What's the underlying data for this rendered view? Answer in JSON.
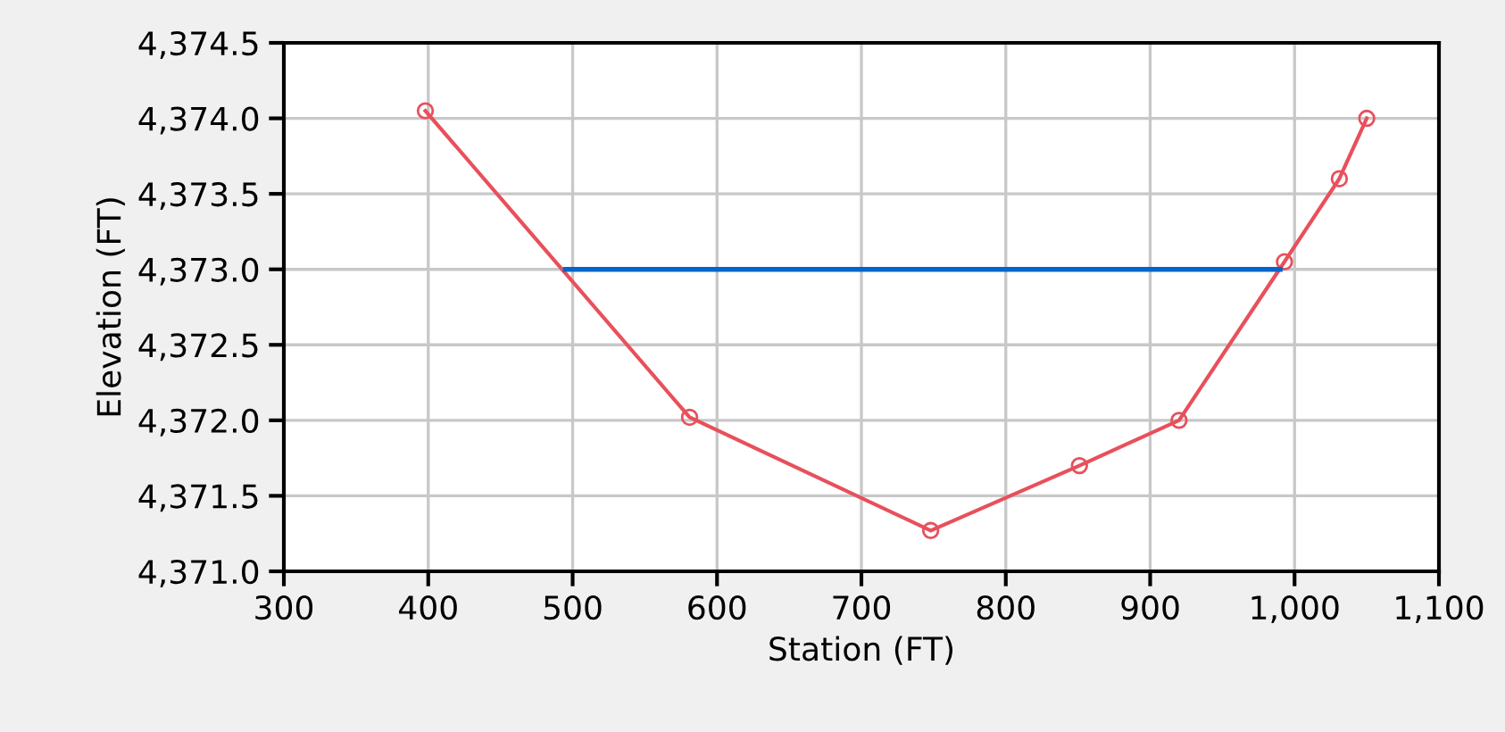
{
  "chart_data": {
    "type": "line",
    "xlabel": "Station (FT)",
    "ylabel": "Elevation (FT)",
    "series": [
      {
        "color": "#e8505b",
        "marker": "circle",
        "x": [
          398,
          581,
          748,
          851,
          920,
          993,
          1031,
          1050
        ],
        "values": [
          4374.05,
          4372.02,
          4371.27,
          4371.7,
          4372.0,
          4373.05,
          4373.6,
          4374.0
        ]
      },
      {
        "color": "#0066cc",
        "marker": "none",
        "x": [
          495,
          990
        ],
        "values": [
          4373.0,
          4373.0
        ]
      }
    ],
    "xlim": [
      300,
      1100
    ],
    "xticks": [
      300,
      400,
      500,
      600,
      700,
      800,
      900,
      {
        "value": 1000,
        "label": "1,000"
      },
      {
        "value": 1100,
        "label": "1,100"
      }
    ],
    "ylim": [
      4371.0,
      4374.5
    ],
    "yticks": [
      {
        "value": 4371.0,
        "label": "4,371.0"
      },
      {
        "value": 4371.5,
        "label": "4,371.5"
      },
      {
        "value": 4372.0,
        "label": "4,372.0"
      },
      {
        "value": 4372.5,
        "label": "4,372.5"
      },
      {
        "value": 4373.0,
        "label": "4,373.0"
      },
      {
        "value": 4373.5,
        "label": "4,373.5"
      },
      {
        "value": 4374.0,
        "label": "4,374.0"
      },
      {
        "value": 4374.5,
        "label": "4,374.5"
      }
    ],
    "grid": true
  }
}
